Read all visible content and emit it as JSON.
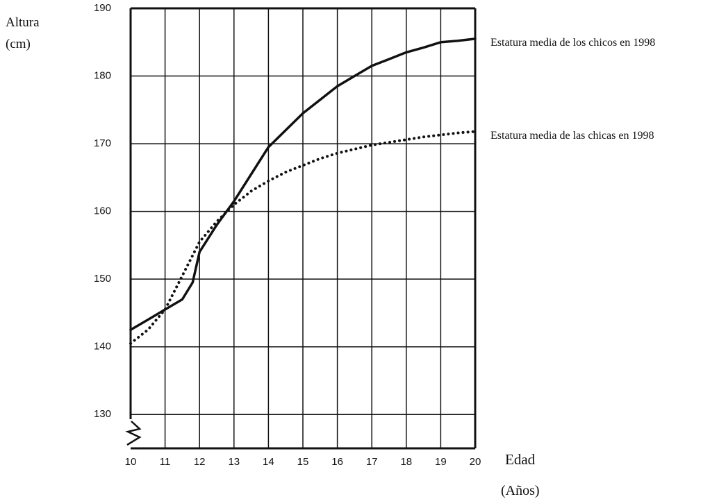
{
  "chart_data": {
    "type": "line",
    "title": "",
    "ylabel_line1": "Altura",
    "ylabel_line2": "(cm)",
    "xlabel_line1": "Edad",
    "xlabel_line2": "(Años)",
    "xlim": [
      10,
      20
    ],
    "ylim": [
      125,
      190
    ],
    "x_ticks": [
      10,
      11,
      12,
      13,
      14,
      15,
      16,
      17,
      18,
      19,
      20
    ],
    "y_ticks": [
      130,
      140,
      150,
      160,
      170,
      180,
      190
    ],
    "grid": true,
    "axis_break": "y",
    "series": [
      {
        "name": "Estatura media de los chicos en 1998",
        "style": "solid",
        "x": [
          10,
          10.5,
          11,
          11.5,
          11.8,
          12,
          12.5,
          13,
          13.5,
          14,
          14.5,
          15,
          15.5,
          16,
          16.5,
          17,
          17.5,
          18,
          18.5,
          19,
          19.5,
          20
        ],
        "y": [
          142.5,
          144,
          145.5,
          147,
          149.5,
          154,
          158,
          161.5,
          165.5,
          169.5,
          172,
          174.5,
          176.5,
          178.5,
          180,
          181.5,
          182.5,
          183.5,
          184.2,
          185,
          185.2,
          185.5
        ]
      },
      {
        "name": "Estatura media de las chicas en 1998",
        "style": "dotted",
        "x": [
          10,
          10.5,
          11,
          11.5,
          12,
          12.5,
          13,
          13.5,
          14,
          14.5,
          15,
          15.5,
          16,
          16.5,
          17,
          17.5,
          18,
          18.5,
          19,
          19.5,
          20
        ],
        "y": [
          140.5,
          142.5,
          145.5,
          150.5,
          155.5,
          158.5,
          161,
          163,
          164.5,
          165.8,
          166.8,
          167.8,
          168.6,
          169.2,
          169.8,
          170.2,
          170.6,
          171,
          171.3,
          171.6,
          171.8
        ]
      }
    ]
  }
}
